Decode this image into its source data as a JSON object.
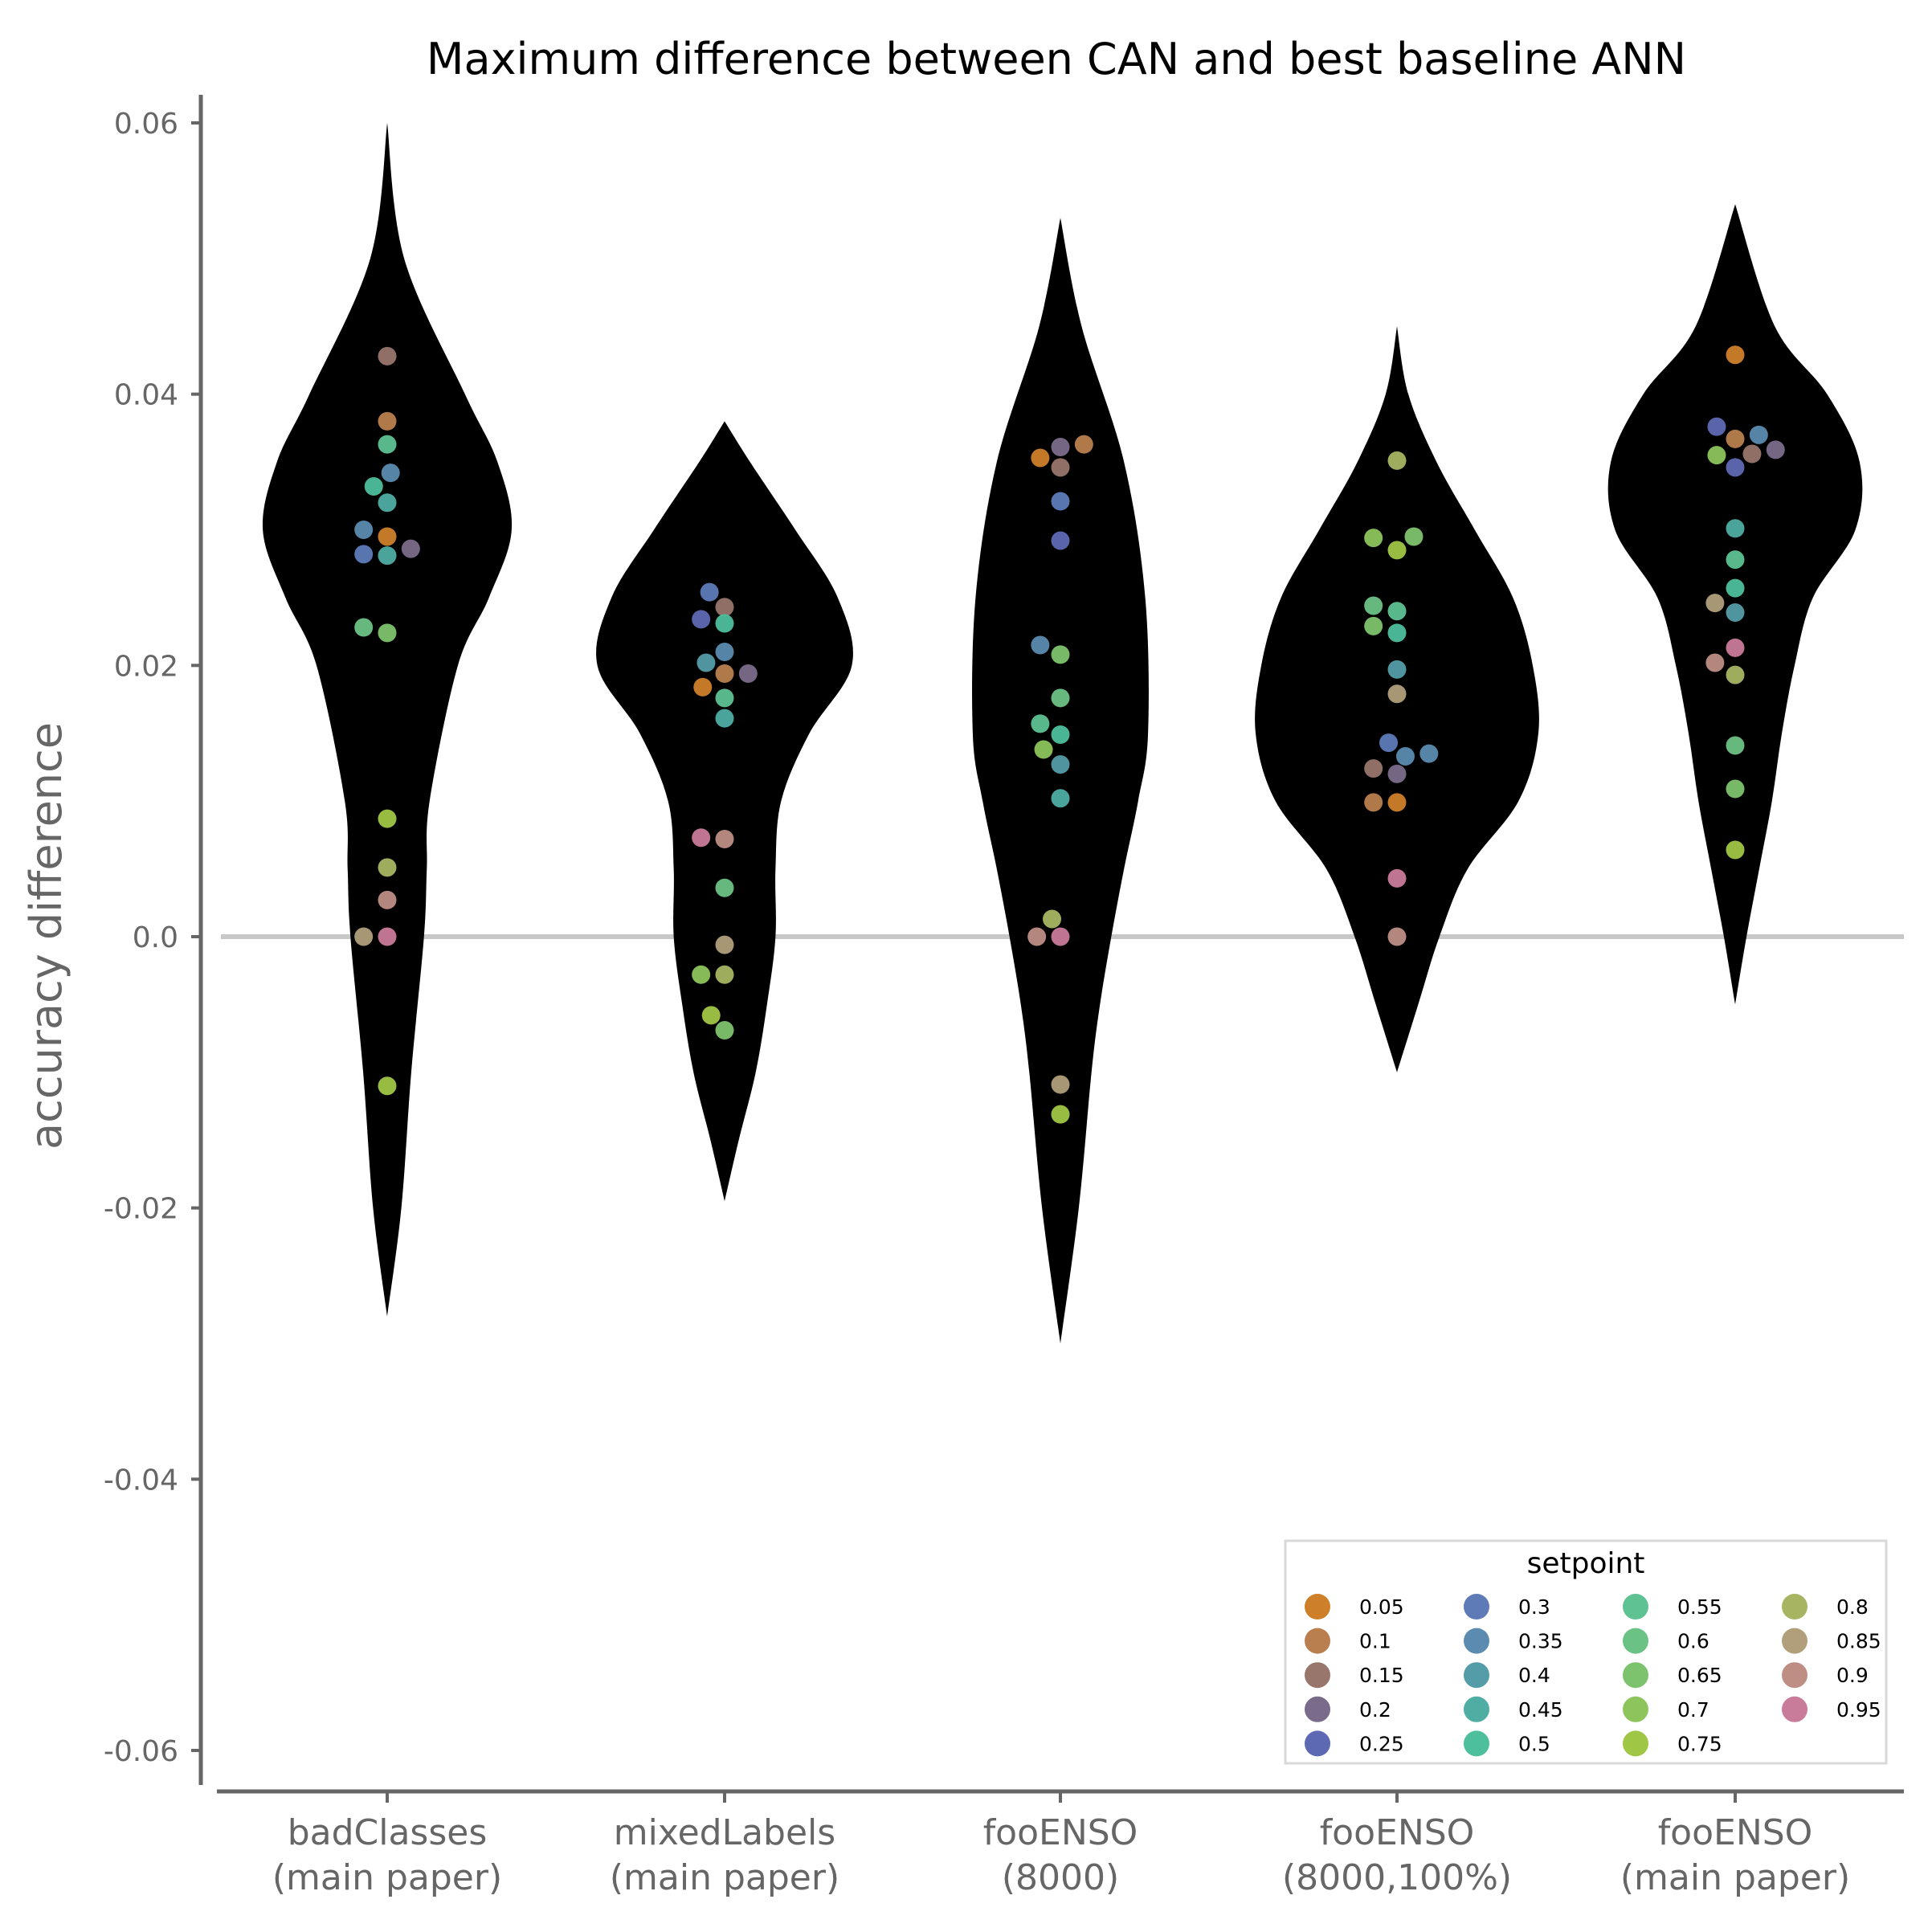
{
  "chart_data": {
    "type": "violin",
    "title": "Maximum difference between CAN and best baseline ANN",
    "xlabel": "",
    "ylabel": "accuracy difference",
    "ylim": [
      -0.062,
      0.062
    ],
    "yticks": [
      0.06,
      0.04,
      0.02,
      0.0,
      -0.02,
      -0.04,
      -0.06
    ],
    "ytick_labels": [
      "0.06",
      "0.04",
      "0.02",
      "0.0",
      "-0.02",
      "-0.04",
      "-0.06"
    ],
    "reference_line": 0.0,
    "categories": [
      [
        "badClasses",
        "(main paper)"
      ],
      [
        "mixedLabels",
        "(main paper)"
      ],
      [
        "fooENSO",
        "(8000)"
      ],
      [
        "fooENSO",
        "(8000,100%)"
      ],
      [
        "fooENSO",
        "(main paper)"
      ]
    ],
    "violin_color": "#000000",
    "violins": [
      {
        "y": [
          0.06,
          0.05,
          0.04,
          0.035,
          0.03,
          0.025,
          0.02,
          0.01,
          0.005,
          0.0,
          -0.01,
          -0.02,
          -0.028
        ],
        "w": [
          0.0,
          0.12,
          0.55,
          0.78,
          0.88,
          0.72,
          0.5,
          0.3,
          0.28,
          0.26,
          0.17,
          0.1,
          0.0
        ]
      },
      {
        "y": [
          0.038,
          0.035,
          0.03,
          0.025,
          0.02,
          0.015,
          0.01,
          0.005,
          0.0,
          -0.005,
          -0.01,
          -0.015,
          -0.0195
        ],
        "w": [
          0.0,
          0.18,
          0.5,
          0.8,
          0.9,
          0.6,
          0.4,
          0.36,
          0.36,
          0.3,
          0.22,
          0.1,
          0.0
        ]
      },
      {
        "y": [
          0.053,
          0.045,
          0.035,
          0.025,
          0.015,
          0.01,
          0.005,
          0.0,
          -0.005,
          -0.01,
          -0.02,
          -0.03
        ],
        "w": [
          0.0,
          0.15,
          0.45,
          0.6,
          0.62,
          0.55,
          0.45,
          0.36,
          0.28,
          0.22,
          0.13,
          0.0
        ]
      },
      {
        "y": [
          0.045,
          0.04,
          0.035,
          0.03,
          0.025,
          0.02,
          0.015,
          0.01,
          0.005,
          0.0,
          -0.005,
          -0.01
        ],
        "w": [
          0.0,
          0.08,
          0.28,
          0.55,
          0.82,
          0.96,
          1.0,
          0.86,
          0.5,
          0.3,
          0.15,
          0.0
        ]
      },
      {
        "y": [
          0.054,
          0.045,
          0.04,
          0.035,
          0.03,
          0.025,
          0.02,
          0.015,
          0.01,
          0.005,
          0.0,
          -0.005
        ],
        "w": [
          0.0,
          0.28,
          0.65,
          0.88,
          0.85,
          0.55,
          0.42,
          0.33,
          0.26,
          0.17,
          0.08,
          0.0
        ]
      }
    ],
    "series": [
      {
        "name": "0.05",
        "color": "#CD7F2A"
      },
      {
        "name": "0.1",
        "color": "#B97F4E"
      },
      {
        "name": "0.15",
        "color": "#98766B"
      },
      {
        "name": "0.2",
        "color": "#7B6B8B"
      },
      {
        "name": "0.25",
        "color": "#5E69B3"
      },
      {
        "name": "0.3",
        "color": "#5E7BB8"
      },
      {
        "name": "0.35",
        "color": "#5B8BB0"
      },
      {
        "name": "0.4",
        "color": "#549CA8"
      },
      {
        "name": "0.45",
        "color": "#4FADA3"
      },
      {
        "name": "0.5",
        "color": "#4EBF9C"
      },
      {
        "name": "0.55",
        "color": "#5EC292"
      },
      {
        "name": "0.6",
        "color": "#6BC285"
      },
      {
        "name": "0.65",
        "color": "#7DC36D"
      },
      {
        "name": "0.7",
        "color": "#8DC45B"
      },
      {
        "name": "0.75",
        "color": "#9FC644"
      },
      {
        "name": "0.8",
        "color": "#A7B562"
      },
      {
        "name": "0.85",
        "color": "#B09F7A"
      },
      {
        "name": "0.9",
        "color": "#BE8E85"
      },
      {
        "name": "0.95",
        "color": "#C97B9A"
      }
    ],
    "points": [
      {
        "g": 0,
        "dx": 0.0,
        "y": 0.0428,
        "s": 2
      },
      {
        "g": 0,
        "dx": 0.0,
        "y": 0.038,
        "s": 1
      },
      {
        "g": 0,
        "dx": 0.0,
        "y": 0.0363,
        "s": 10
      },
      {
        "g": 0,
        "dx": 0.01,
        "y": 0.0342,
        "s": 6
      },
      {
        "g": 0,
        "dx": -0.04,
        "y": 0.0332,
        "s": 9
      },
      {
        "g": 0,
        "dx": 0.0,
        "y": 0.032,
        "s": 8
      },
      {
        "g": 0,
        "dx": -0.07,
        "y": 0.03,
        "s": 6
      },
      {
        "g": 0,
        "dx": 0.0,
        "y": 0.0295,
        "s": 0
      },
      {
        "g": 0,
        "dx": 0.07,
        "y": 0.0286,
        "s": 3
      },
      {
        "g": 0,
        "dx": -0.07,
        "y": 0.0282,
        "s": 5
      },
      {
        "g": 0,
        "dx": 0.0,
        "y": 0.0281,
        "s": 8
      },
      {
        "g": 0,
        "dx": -0.07,
        "y": 0.0228,
        "s": 11
      },
      {
        "g": 0,
        "dx": 0.0,
        "y": 0.0224,
        "s": 12
      },
      {
        "g": 0,
        "dx": 0.0,
        "y": 0.0087,
        "s": 14
      },
      {
        "g": 0,
        "dx": 0.0,
        "y": 0.0051,
        "s": 15
      },
      {
        "g": 0,
        "dx": 0.0,
        "y": 0.0027,
        "s": 17
      },
      {
        "g": 0,
        "dx": -0.07,
        "y": 0.0,
        "s": 16
      },
      {
        "g": 0,
        "dx": 0.0,
        "y": 0.0,
        "s": 18
      },
      {
        "g": 0,
        "dx": 0.0,
        "y": -0.011,
        "s": 14
      },
      {
        "g": 1,
        "dx": -0.045,
        "y": 0.0254,
        "s": 5
      },
      {
        "g": 1,
        "dx": 0.0,
        "y": 0.0243,
        "s": 2
      },
      {
        "g": 1,
        "dx": -0.07,
        "y": 0.0234,
        "s": 4
      },
      {
        "g": 1,
        "dx": 0.0,
        "y": 0.0231,
        "s": 9
      },
      {
        "g": 1,
        "dx": 0.0,
        "y": 0.021,
        "s": 6
      },
      {
        "g": 1,
        "dx": -0.055,
        "y": 0.0202,
        "s": 7
      },
      {
        "g": 1,
        "dx": 0.0,
        "y": 0.0194,
        "s": 1
      },
      {
        "g": 1,
        "dx": 0.07,
        "y": 0.0194,
        "s": 3
      },
      {
        "g": 1,
        "dx": -0.065,
        "y": 0.0184,
        "s": 0
      },
      {
        "g": 1,
        "dx": 0.0,
        "y": 0.0176,
        "s": 10
      },
      {
        "g": 1,
        "dx": 0.0,
        "y": 0.0161,
        "s": 8
      },
      {
        "g": 1,
        "dx": -0.07,
        "y": 0.0073,
        "s": 18
      },
      {
        "g": 1,
        "dx": 0.0,
        "y": 0.0072,
        "s": 17
      },
      {
        "g": 1,
        "dx": 0.0,
        "y": 0.0036,
        "s": 11
      },
      {
        "g": 1,
        "dx": 0.0,
        "y": -0.0006,
        "s": 16
      },
      {
        "g": 1,
        "dx": -0.07,
        "y": -0.0028,
        "s": 13
      },
      {
        "g": 1,
        "dx": 0.0,
        "y": -0.0028,
        "s": 15
      },
      {
        "g": 1,
        "dx": -0.04,
        "y": -0.0058,
        "s": 14
      },
      {
        "g": 1,
        "dx": 0.0,
        "y": -0.0069,
        "s": 12
      },
      {
        "g": 2,
        "dx": 0.0,
        "y": 0.0361,
        "s": 3
      },
      {
        "g": 2,
        "dx": 0.07,
        "y": 0.0363,
        "s": 1
      },
      {
        "g": 2,
        "dx": -0.06,
        "y": 0.0353,
        "s": 0
      },
      {
        "g": 2,
        "dx": 0.0,
        "y": 0.0346,
        "s": 2
      },
      {
        "g": 2,
        "dx": 0.0,
        "y": 0.0321,
        "s": 5
      },
      {
        "g": 2,
        "dx": 0.0,
        "y": 0.0292,
        "s": 4
      },
      {
        "g": 2,
        "dx": -0.06,
        "y": 0.0215,
        "s": 6
      },
      {
        "g": 2,
        "dx": 0.0,
        "y": 0.0208,
        "s": 12
      },
      {
        "g": 2,
        "dx": 0.0,
        "y": 0.0176,
        "s": 11
      },
      {
        "g": 2,
        "dx": -0.06,
        "y": 0.0157,
        "s": 10
      },
      {
        "g": 2,
        "dx": 0.0,
        "y": 0.0149,
        "s": 9
      },
      {
        "g": 2,
        "dx": -0.05,
        "y": 0.0138,
        "s": 13
      },
      {
        "g": 2,
        "dx": 0.0,
        "y": 0.0127,
        "s": 7
      },
      {
        "g": 2,
        "dx": 0.0,
        "y": 0.0102,
        "s": 8
      },
      {
        "g": 2,
        "dx": -0.025,
        "y": 0.0013,
        "s": 15
      },
      {
        "g": 2,
        "dx": -0.07,
        "y": 0.0,
        "s": 17
      },
      {
        "g": 2,
        "dx": 0.0,
        "y": 0.0,
        "s": 18
      },
      {
        "g": 2,
        "dx": 0.0,
        "y": -0.0109,
        "s": 16
      },
      {
        "g": 2,
        "dx": 0.0,
        "y": -0.0131,
        "s": 14
      },
      {
        "g": 3,
        "dx": 0.0,
        "y": 0.0351,
        "s": 15
      },
      {
        "g": 3,
        "dx": -0.07,
        "y": 0.0294,
        "s": 13
      },
      {
        "g": 3,
        "dx": 0.05,
        "y": 0.0295,
        "s": 12
      },
      {
        "g": 3,
        "dx": 0.0,
        "y": 0.0285,
        "s": 14
      },
      {
        "g": 3,
        "dx": -0.07,
        "y": 0.0244,
        "s": 11
      },
      {
        "g": 3,
        "dx": 0.0,
        "y": 0.024,
        "s": 10
      },
      {
        "g": 3,
        "dx": -0.07,
        "y": 0.0229,
        "s": 12
      },
      {
        "g": 3,
        "dx": 0.0,
        "y": 0.0224,
        "s": 9
      },
      {
        "g": 3,
        "dx": 0.0,
        "y": 0.0197,
        "s": 7
      },
      {
        "g": 3,
        "dx": 0.0,
        "y": 0.0179,
        "s": 16
      },
      {
        "g": 3,
        "dx": -0.025,
        "y": 0.0143,
        "s": 5
      },
      {
        "g": 3,
        "dx": 0.095,
        "y": 0.0135,
        "s": 6
      },
      {
        "g": 3,
        "dx": 0.025,
        "y": 0.0133,
        "s": 6
      },
      {
        "g": 3,
        "dx": -0.07,
        "y": 0.0124,
        "s": 2
      },
      {
        "g": 3,
        "dx": 0.0,
        "y": 0.012,
        "s": 3
      },
      {
        "g": 3,
        "dx": -0.07,
        "y": 0.0099,
        "s": 1
      },
      {
        "g": 3,
        "dx": 0.0,
        "y": 0.0099,
        "s": 0
      },
      {
        "g": 3,
        "dx": 0.0,
        "y": 0.0043,
        "s": 18
      },
      {
        "g": 3,
        "dx": 0.0,
        "y": 0.0,
        "s": 17
      },
      {
        "g": 4,
        "dx": 0.0,
        "y": 0.0429,
        "s": 0
      },
      {
        "g": 4,
        "dx": -0.055,
        "y": 0.0376,
        "s": 4
      },
      {
        "g": 4,
        "dx": 0.07,
        "y": 0.037,
        "s": 6
      },
      {
        "g": 4,
        "dx": 0.0,
        "y": 0.0367,
        "s": 1
      },
      {
        "g": 4,
        "dx": 0.12,
        "y": 0.0359,
        "s": 3
      },
      {
        "g": 4,
        "dx": 0.05,
        "y": 0.0356,
        "s": 2
      },
      {
        "g": 4,
        "dx": -0.055,
        "y": 0.0355,
        "s": 13
      },
      {
        "g": 4,
        "dx": 0.0,
        "y": 0.0346,
        "s": 4
      },
      {
        "g": 4,
        "dx": 0.0,
        "y": 0.0301,
        "s": 8
      },
      {
        "g": 4,
        "dx": 0.0,
        "y": 0.0278,
        "s": 10
      },
      {
        "g": 4,
        "dx": 0.0,
        "y": 0.0257,
        "s": 9
      },
      {
        "g": 4,
        "dx": -0.06,
        "y": 0.0246,
        "s": 16
      },
      {
        "g": 4,
        "dx": 0.0,
        "y": 0.0239,
        "s": 7
      },
      {
        "g": 4,
        "dx": 0.0,
        "y": 0.0213,
        "s": 18
      },
      {
        "g": 4,
        "dx": -0.06,
        "y": 0.0202,
        "s": 17
      },
      {
        "g": 4,
        "dx": 0.0,
        "y": 0.0193,
        "s": 15
      },
      {
        "g": 4,
        "dx": 0.0,
        "y": 0.0141,
        "s": 11
      },
      {
        "g": 4,
        "dx": 0.0,
        "y": 0.0109,
        "s": 12
      },
      {
        "g": 4,
        "dx": 0.0,
        "y": 0.0064,
        "s": 14
      }
    ],
    "legend": {
      "title": "setpoint",
      "position": "bottom-right",
      "columns": 4
    },
    "grid": false
  }
}
